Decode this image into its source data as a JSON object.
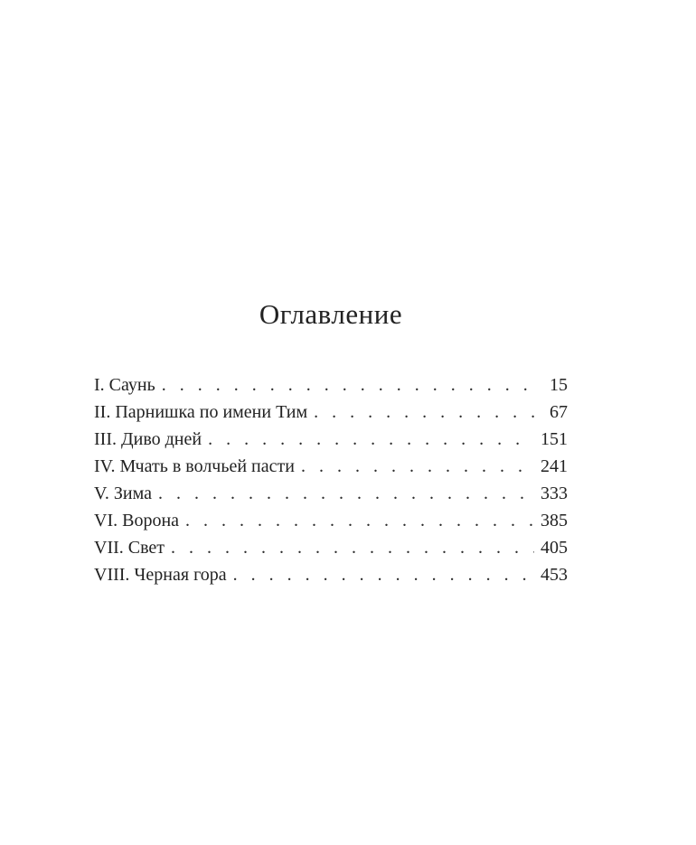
{
  "page": {
    "title": "Оглавление"
  },
  "toc": {
    "entries": [
      {
        "title": "I. Саунь",
        "page": "15"
      },
      {
        "title": "II. Парнишка по имени Тим",
        "page": "67"
      },
      {
        "title": "III. Диво дней",
        "page": "151"
      },
      {
        "title": "IV. Мчать в волчьей пасти",
        "page": "241"
      },
      {
        "title": "V. Зима",
        "page": "333"
      },
      {
        "title": "VI. Ворона",
        "page": "385"
      },
      {
        "title": "VII. Свет",
        "page": "405"
      },
      {
        "title": "VIII. Черная гора",
        "page": "453"
      }
    ]
  },
  "colors": {
    "text": "#222222",
    "background": "#ffffff"
  }
}
